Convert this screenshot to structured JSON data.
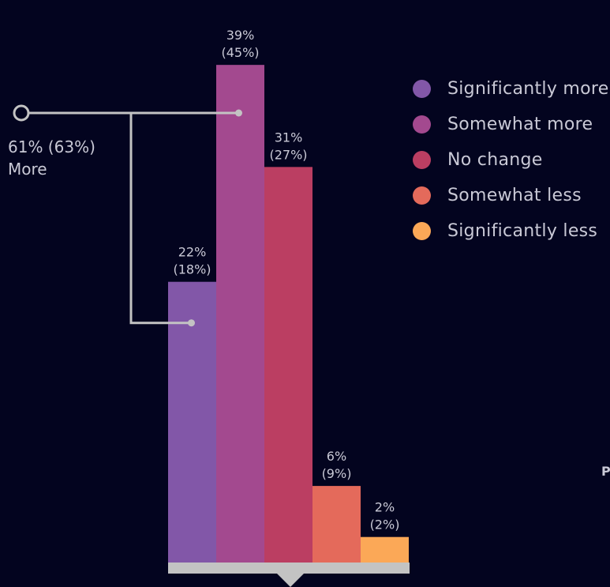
{
  "chart_data": {
    "type": "bar",
    "categories": [
      "Significantly more",
      "Somewhat more",
      "No change",
      "Somewhat less",
      "Significantly less"
    ],
    "values": [
      22,
      39,
      31,
      6,
      2
    ],
    "value_labels": [
      "22%",
      "39%",
      "31%",
      "6%",
      "2%"
    ],
    "secondary_labels": [
      "(18%)",
      "(45%)",
      "(27%)",
      "(9%)",
      "(2%)"
    ],
    "colors": [
      "#8257a8",
      "#a3498f",
      "#bb3e62",
      "#e46a5b",
      "#fba857"
    ],
    "ylim": [
      0,
      40
    ],
    "legend_position": "top-right",
    "grid": false
  },
  "callout": {
    "value_text": "61% (63%)",
    "label": "More"
  },
  "cut_text": "P"
}
